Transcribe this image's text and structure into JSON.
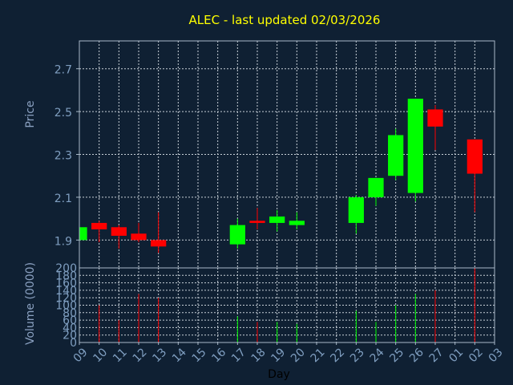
{
  "chart_data": {
    "type": "candlestick",
    "title": "ALEC - last updated 02/03/2026",
    "xlabel": "Day",
    "price_ylabel": "Price",
    "volume_ylabel": "Volume (0000)",
    "x_ticks": [
      "09",
      "10",
      "11",
      "12",
      "13",
      "14",
      "15",
      "16",
      "17",
      "18",
      "19",
      "20",
      "21",
      "22",
      "23",
      "24",
      "25",
      "26",
      "27",
      "01",
      "02",
      "03"
    ],
    "price_ylim": [
      1.77,
      2.83
    ],
    "price_ticks": [
      "1.9",
      "2.1",
      "2.3",
      "2.5",
      "2.7"
    ],
    "volume_ylim": [
      0,
      200
    ],
    "volume_ticks": [
      "0",
      "20",
      "40",
      "60",
      "80",
      "100",
      "120",
      "140",
      "160",
      "180",
      "200"
    ],
    "grid": true,
    "colors": {
      "background": "#0f2033",
      "axes": "#a8b8c8",
      "grid": "#c8d0d8",
      "title": "#ffff00",
      "label": "#8aa0c0",
      "tick": "#7f9ec0",
      "up": "#00ff00",
      "down": "#ff0000"
    },
    "candles": [
      {
        "day": "09",
        "open": 1.9,
        "high": 1.96,
        "low": 1.9,
        "close": 1.96,
        "volume": 0
      },
      {
        "day": "10",
        "open": 1.98,
        "high": 1.99,
        "low": 1.89,
        "close": 1.95,
        "volume": 100
      },
      {
        "day": "11",
        "open": 1.96,
        "high": 1.97,
        "low": 1.86,
        "close": 1.92,
        "volume": 60
      },
      {
        "day": "12",
        "open": 1.93,
        "high": 1.98,
        "low": 1.89,
        "close": 1.9,
        "volume": 130
      },
      {
        "day": "13",
        "open": 1.9,
        "high": 2.03,
        "low": 1.84,
        "close": 1.87,
        "volume": 120
      },
      {
        "day": "17",
        "open": 1.88,
        "high": 2.0,
        "low": 1.86,
        "close": 1.97,
        "volume": 70
      },
      {
        "day": "18",
        "open": 1.99,
        "high": 2.05,
        "low": 1.95,
        "close": 1.98,
        "volume": 55
      },
      {
        "day": "19",
        "open": 1.98,
        "high": 2.04,
        "low": 1.94,
        "close": 2.01,
        "volume": 55
      },
      {
        "day": "20",
        "open": 1.97,
        "high": 2.03,
        "low": 1.95,
        "close": 1.99,
        "volume": 50
      },
      {
        "day": "23",
        "open": 1.98,
        "high": 2.11,
        "low": 1.93,
        "close": 2.1,
        "volume": 85
      },
      {
        "day": "24",
        "open": 2.1,
        "high": 2.19,
        "low": 2.06,
        "close": 2.19,
        "volume": 55
      },
      {
        "day": "25",
        "open": 2.2,
        "high": 2.42,
        "low": 2.18,
        "close": 2.39,
        "volume": 100
      },
      {
        "day": "26",
        "open": 2.12,
        "high": 2.56,
        "low": 2.08,
        "close": 2.56,
        "volume": 130
      },
      {
        "day": "27",
        "open": 2.51,
        "high": 2.53,
        "low": 2.32,
        "close": 2.43,
        "volume": 140
      },
      {
        "day": "02",
        "open": 2.37,
        "high": 2.37,
        "low": 2.03,
        "close": 2.21,
        "volume": 200
      }
    ]
  }
}
